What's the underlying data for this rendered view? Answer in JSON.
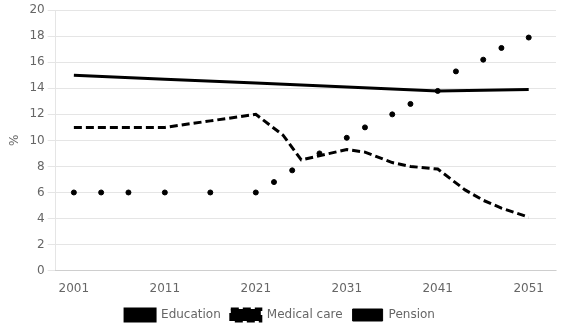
{
  "chart_data": {
    "type": "line",
    "y_label": "%",
    "series": [
      {
        "name": "Education",
        "color": "#000000",
        "line_style": "solid",
        "marker": "none",
        "x": [
          2001,
          2011,
          2021,
          2031,
          2041,
          2051
        ],
        "values": [
          15.0,
          14.7,
          14.4,
          14.1,
          13.8,
          13.9
        ]
      },
      {
        "name": "Medical care",
        "color": "#000000",
        "line_style": "dashed",
        "marker": "none",
        "x": [
          2001,
          2004,
          2007,
          2011,
          2016,
          2021,
          2024,
          2026,
          2031,
          2033,
          2036,
          2038,
          2041,
          2044,
          2046,
          2048,
          2051
        ],
        "values": [
          11.0,
          11.0,
          11.0,
          11.0,
          11.5,
          12.0,
          10.4,
          8.5,
          9.3,
          9.1,
          8.3,
          8.0,
          7.8,
          6.2,
          5.4,
          4.8,
          4.1
        ]
      },
      {
        "name": "Pension",
        "color": "#000000",
        "line_style": "none",
        "marker": "circle",
        "x": [
          2001,
          2004,
          2007,
          2011,
          2016,
          2021,
          2023,
          2025,
          2028,
          2031,
          2033,
          2036,
          2038,
          2041,
          2043,
          2046,
          2048,
          2051
        ],
        "values": [
          6.0,
          6.0,
          6.0,
          6.0,
          6.0,
          6.0,
          6.8,
          7.7,
          9.0,
          10.2,
          11.0,
          12.0,
          12.8,
          13.8,
          15.3,
          16.2,
          17.1,
          17.9
        ]
      }
    ],
    "xlim": [
      1999,
      2054
    ],
    "xticks": [
      2001,
      2011,
      2021,
      2031,
      2041,
      2051
    ],
    "ylim": [
      0,
      20
    ],
    "yticks": [
      0,
      2,
      4,
      6,
      8,
      10,
      12,
      14,
      16,
      18,
      20
    ],
    "grid": "y",
    "legend": "bottom"
  }
}
